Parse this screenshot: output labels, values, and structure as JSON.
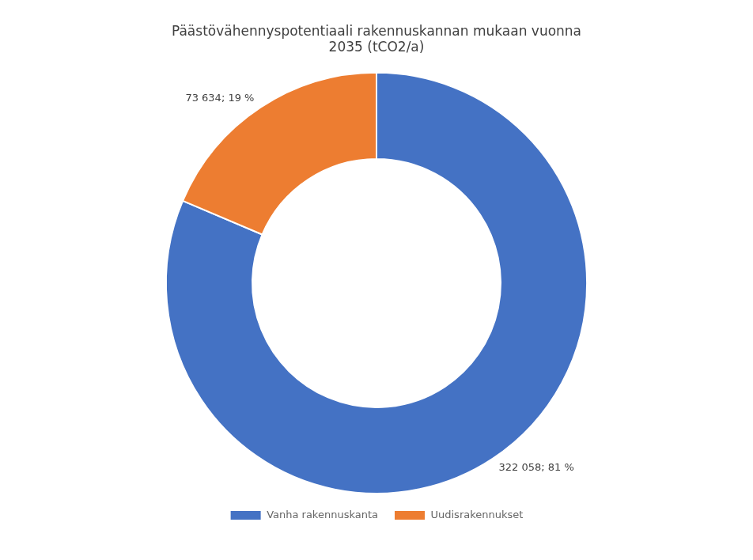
{
  "chart_data": {
    "type": "doughnut",
    "title": "Päästövähennyspotentiaali rakennuskannan mukaan vuonna\n2035 (tCO2/a)",
    "categories": [
      "Vanha rakennuskanta",
      "Uudisrakennukset"
    ],
    "values": [
      322058,
      73634
    ],
    "value_labels": [
      "322 058; 81 %",
      "73 634; 19 %"
    ],
    "colors": [
      "#4472C4",
      "#ED7D31"
    ],
    "data_labels": true,
    "legend": "bottom"
  }
}
